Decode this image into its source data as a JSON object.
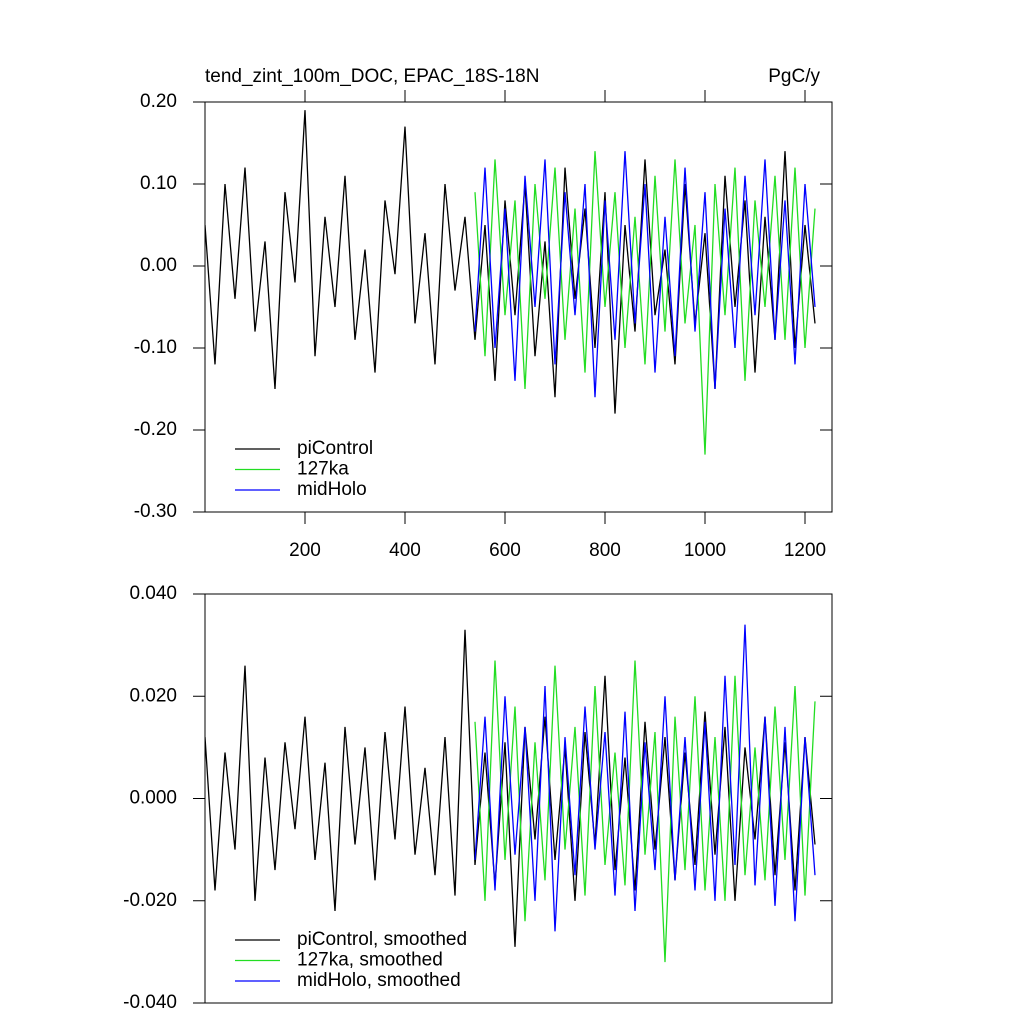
{
  "chart_data": [
    {
      "type": "line",
      "title": "tend_zint_100m_DOC, EPAC_18S-18N",
      "units": "PgC/y",
      "x": [
        0,
        20,
        40,
        60,
        80,
        100,
        120,
        140,
        160,
        180,
        200,
        220,
        240,
        260,
        280,
        300,
        320,
        340,
        360,
        380,
        400,
        420,
        440,
        460,
        480,
        500,
        520,
        540,
        560,
        580,
        600,
        620,
        640,
        660,
        680,
        700,
        720,
        740,
        760,
        780,
        800,
        820,
        840,
        860,
        880,
        900,
        920,
        940,
        960,
        980,
        1000,
        1020,
        1040,
        1060,
        1080,
        1100,
        1120,
        1140,
        1160,
        1180,
        1200,
        1220
      ],
      "xlim": [
        0,
        1254
      ],
      "xticks": [
        200,
        400,
        600,
        800,
        1000,
        1200
      ],
      "ylim": [
        -0.3,
        0.2
      ],
      "yticks": [
        {
          "value": -0.3,
          "label": "-0.30"
        },
        {
          "value": -0.2,
          "label": "-0.20"
        },
        {
          "value": -0.1,
          "label": "-0.10"
        },
        {
          "value": 0,
          "label": "0.00"
        },
        {
          "value": 0.1,
          "label": "0.10"
        },
        {
          "value": 0.2,
          "label": "0.20"
        }
      ],
      "legend": "lower left",
      "series": [
        {
          "name": "piControl",
          "color": "#000000",
          "values": [
            0.05,
            -0.12,
            0.1,
            -0.04,
            0.12,
            -0.08,
            0.03,
            -0.15,
            0.09,
            -0.02,
            0.19,
            -0.11,
            0.06,
            -0.05,
            0.11,
            -0.09,
            0.02,
            -0.13,
            0.08,
            -0.01,
            0.17,
            -0.07,
            0.04,
            -0.12,
            0.1,
            -0.03,
            0.06,
            -0.09,
            0.05,
            -0.14,
            0.08,
            -0.06,
            0.1,
            -0.11,
            0.03,
            -0.16,
            0.12,
            -0.04,
            0.07,
            -0.1,
            0.09,
            -0.18,
            0.05,
            -0.08,
            0.13,
            -0.06,
            0.02,
            -0.12,
            0.1,
            -0.07,
            0.04,
            -0.15,
            0.11,
            -0.05,
            0.08,
            -0.13,
            0.06,
            -0.09,
            0.14,
            -0.1,
            0.05,
            -0.07
          ]
        },
        {
          "name": "127ka",
          "color": "#22dd22",
          "values": [
            null,
            null,
            null,
            null,
            null,
            null,
            null,
            null,
            null,
            null,
            null,
            null,
            null,
            null,
            null,
            null,
            null,
            null,
            null,
            null,
            null,
            null,
            null,
            null,
            null,
            null,
            null,
            0.09,
            -0.11,
            0.13,
            -0.06,
            0.08,
            -0.15,
            0.1,
            -0.04,
            0.12,
            -0.09,
            0.07,
            -0.13,
            0.14,
            -0.05,
            0.09,
            -0.1,
            0.06,
            -0.12,
            0.11,
            -0.08,
            0.13,
            -0.07,
            0.05,
            -0.23,
            0.1,
            -0.06,
            0.12,
            -0.14,
            0.08,
            -0.05,
            0.11,
            -0.09,
            0.12,
            -0.1,
            0.07
          ]
        },
        {
          "name": "midHolo",
          "color": "#0000ff",
          "values": [
            null,
            null,
            null,
            null,
            null,
            null,
            null,
            null,
            null,
            null,
            null,
            null,
            null,
            null,
            null,
            null,
            null,
            null,
            null,
            null,
            null,
            null,
            null,
            null,
            null,
            null,
            null,
            -0.08,
            0.12,
            -0.1,
            0.07,
            -0.14,
            0.11,
            -0.05,
            0.13,
            -0.12,
            0.09,
            -0.06,
            0.1,
            -0.16,
            0.08,
            -0.09,
            0.14,
            -0.07,
            0.1,
            -0.13,
            0.06,
            -0.11,
            0.12,
            -0.08,
            0.09,
            -0.15,
            0.07,
            -0.1,
            0.11,
            -0.06,
            0.13,
            -0.09,
            0.08,
            -0.12,
            0.1,
            -0.05
          ]
        }
      ]
    },
    {
      "type": "line",
      "x": [
        0,
        20,
        40,
        60,
        80,
        100,
        120,
        140,
        160,
        180,
        200,
        220,
        240,
        260,
        280,
        300,
        320,
        340,
        360,
        380,
        400,
        420,
        440,
        460,
        480,
        500,
        520,
        540,
        560,
        580,
        600,
        620,
        640,
        660,
        680,
        700,
        720,
        740,
        760,
        780,
        800,
        820,
        840,
        860,
        880,
        900,
        920,
        940,
        960,
        980,
        1000,
        1020,
        1040,
        1060,
        1080,
        1100,
        1120,
        1140,
        1160,
        1180,
        1200,
        1220
      ],
      "xlim": [
        0,
        1254
      ],
      "ylim": [
        -0.04,
        0.04
      ],
      "yticks": [
        {
          "value": -0.04,
          "label": "-0.040"
        },
        {
          "value": -0.02,
          "label": "-0.020"
        },
        {
          "value": 0,
          "label": "0.000"
        },
        {
          "value": 0.02,
          "label": "0.020"
        },
        {
          "value": 0.04,
          "label": "0.040"
        }
      ],
      "legend": "lower left",
      "series": [
        {
          "name": "piControl, smoothed",
          "color": "#000000",
          "values": [
            0.012,
            -0.018,
            0.009,
            -0.01,
            0.026,
            -0.02,
            0.008,
            -0.014,
            0.011,
            -0.006,
            0.016,
            -0.012,
            0.007,
            -0.022,
            0.014,
            -0.009,
            0.01,
            -0.016,
            0.013,
            -0.008,
            0.018,
            -0.011,
            0.006,
            -0.015,
            0.012,
            -0.019,
            0.033,
            -0.013,
            0.009,
            -0.017,
            0.011,
            -0.029,
            0.014,
            -0.008,
            0.016,
            -0.012,
            0.01,
            -0.02,
            0.013,
            -0.009,
            0.024,
            -0.014,
            0.008,
            -0.018,
            0.015,
            -0.01,
            0.012,
            -0.016,
            0.009,
            -0.013,
            0.017,
            -0.011,
            0.014,
            -0.02,
            0.01,
            -0.008,
            0.016,
            -0.015,
            0.011,
            -0.018,
            0.012,
            -0.009
          ]
        },
        {
          "name": "127ka, smoothed",
          "color": "#22dd22",
          "values": [
            null,
            null,
            null,
            null,
            null,
            null,
            null,
            null,
            null,
            null,
            null,
            null,
            null,
            null,
            null,
            null,
            null,
            null,
            null,
            null,
            null,
            null,
            null,
            null,
            null,
            null,
            null,
            0.015,
            -0.02,
            0.027,
            -0.012,
            0.018,
            -0.024,
            0.011,
            -0.016,
            0.026,
            -0.01,
            0.014,
            -0.019,
            0.022,
            -0.013,
            0.009,
            -0.017,
            0.027,
            -0.011,
            0.013,
            -0.032,
            0.016,
            -0.014,
            0.02,
            -0.018,
            0.012,
            -0.02,
            0.024,
            -0.015,
            0.01,
            -0.016,
            0.018,
            -0.012,
            0.022,
            -0.019,
            0.019
          ]
        },
        {
          "name": "midHolo, smoothed",
          "color": "#0000ff",
          "values": [
            null,
            null,
            null,
            null,
            null,
            null,
            null,
            null,
            null,
            null,
            null,
            null,
            null,
            null,
            null,
            null,
            null,
            null,
            null,
            null,
            null,
            null,
            null,
            null,
            null,
            null,
            null,
            -0.012,
            0.016,
            -0.018,
            0.02,
            -0.011,
            0.014,
            -0.02,
            0.022,
            -0.026,
            0.012,
            -0.015,
            0.018,
            -0.01,
            0.013,
            -0.019,
            0.017,
            -0.022,
            0.011,
            -0.014,
            0.02,
            -0.016,
            0.012,
            -0.018,
            0.015,
            -0.02,
            0.024,
            -0.013,
            0.034,
            -0.017,
            0.016,
            -0.021,
            0.014,
            -0.024,
            0.012,
            -0.015
          ]
        }
      ]
    }
  ]
}
